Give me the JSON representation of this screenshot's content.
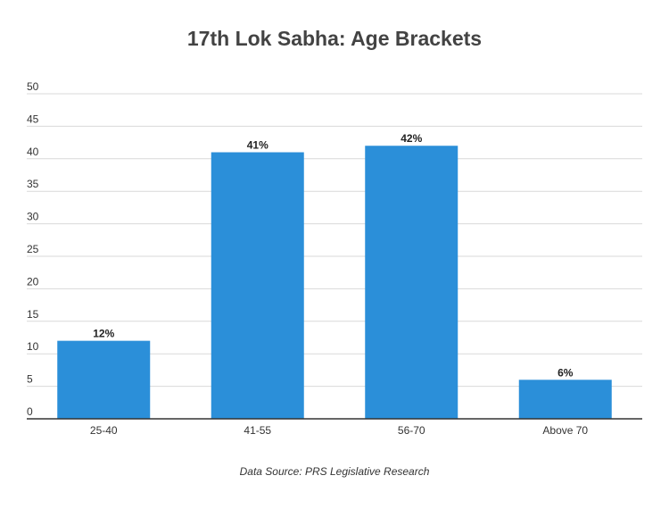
{
  "chart_data": {
    "type": "bar",
    "title": "17th Lok Sabha: Age Brackets",
    "xlabel": "",
    "ylabel": "",
    "categories": [
      "25-40",
      "41-55",
      "56-70",
      "Above 70"
    ],
    "values": [
      12,
      41,
      42,
      6
    ],
    "data_labels": [
      "12%",
      "41%",
      "42%",
      "6%"
    ],
    "ylim": [
      0,
      50
    ],
    "yticks": [
      0,
      5,
      10,
      15,
      20,
      25,
      30,
      35,
      40,
      45,
      50
    ],
    "grid": true,
    "legend": "none",
    "bar_color": "#2b8fd9",
    "source": "Data Source: PRS Legislative Research"
  }
}
